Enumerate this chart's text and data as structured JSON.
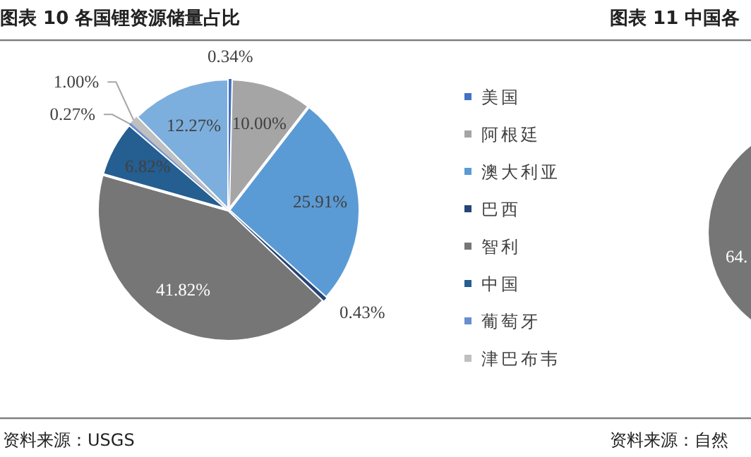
{
  "chart_data": [
    {
      "type": "pie",
      "title": "图表 10  各国锂资源储量占比",
      "categories": [
        "美国",
        "阿根廷",
        "澳大利亚",
        "巴西",
        "智利",
        "中国",
        "葡萄牙",
        "津巴布韦",
        null
      ],
      "values": [
        0.34,
        10.0,
        25.91,
        0.43,
        41.82,
        6.82,
        0.27,
        1.0,
        12.27
      ],
      "value_labels": [
        "0.34%",
        "10.00%",
        "25.91%",
        "0.43%",
        "41.82%",
        "6.82%",
        "0.27%",
        "1.00%",
        "12.27%"
      ],
      "colors": [
        "#4472c4",
        "#a5a5a5",
        "#5b9bd5",
        "#264478",
        "#767676",
        "#255e91",
        "#698ed0",
        "#bfbfbf",
        "#7cafdd"
      ],
      "legend": "right",
      "annotations": [
        "资料来源：USGS"
      ]
    },
    {
      "type": "other",
      "title": "图表 11  中国各",
      "annotations": [
        "64.",
        "资料来源：自然"
      ]
    }
  ]
}
